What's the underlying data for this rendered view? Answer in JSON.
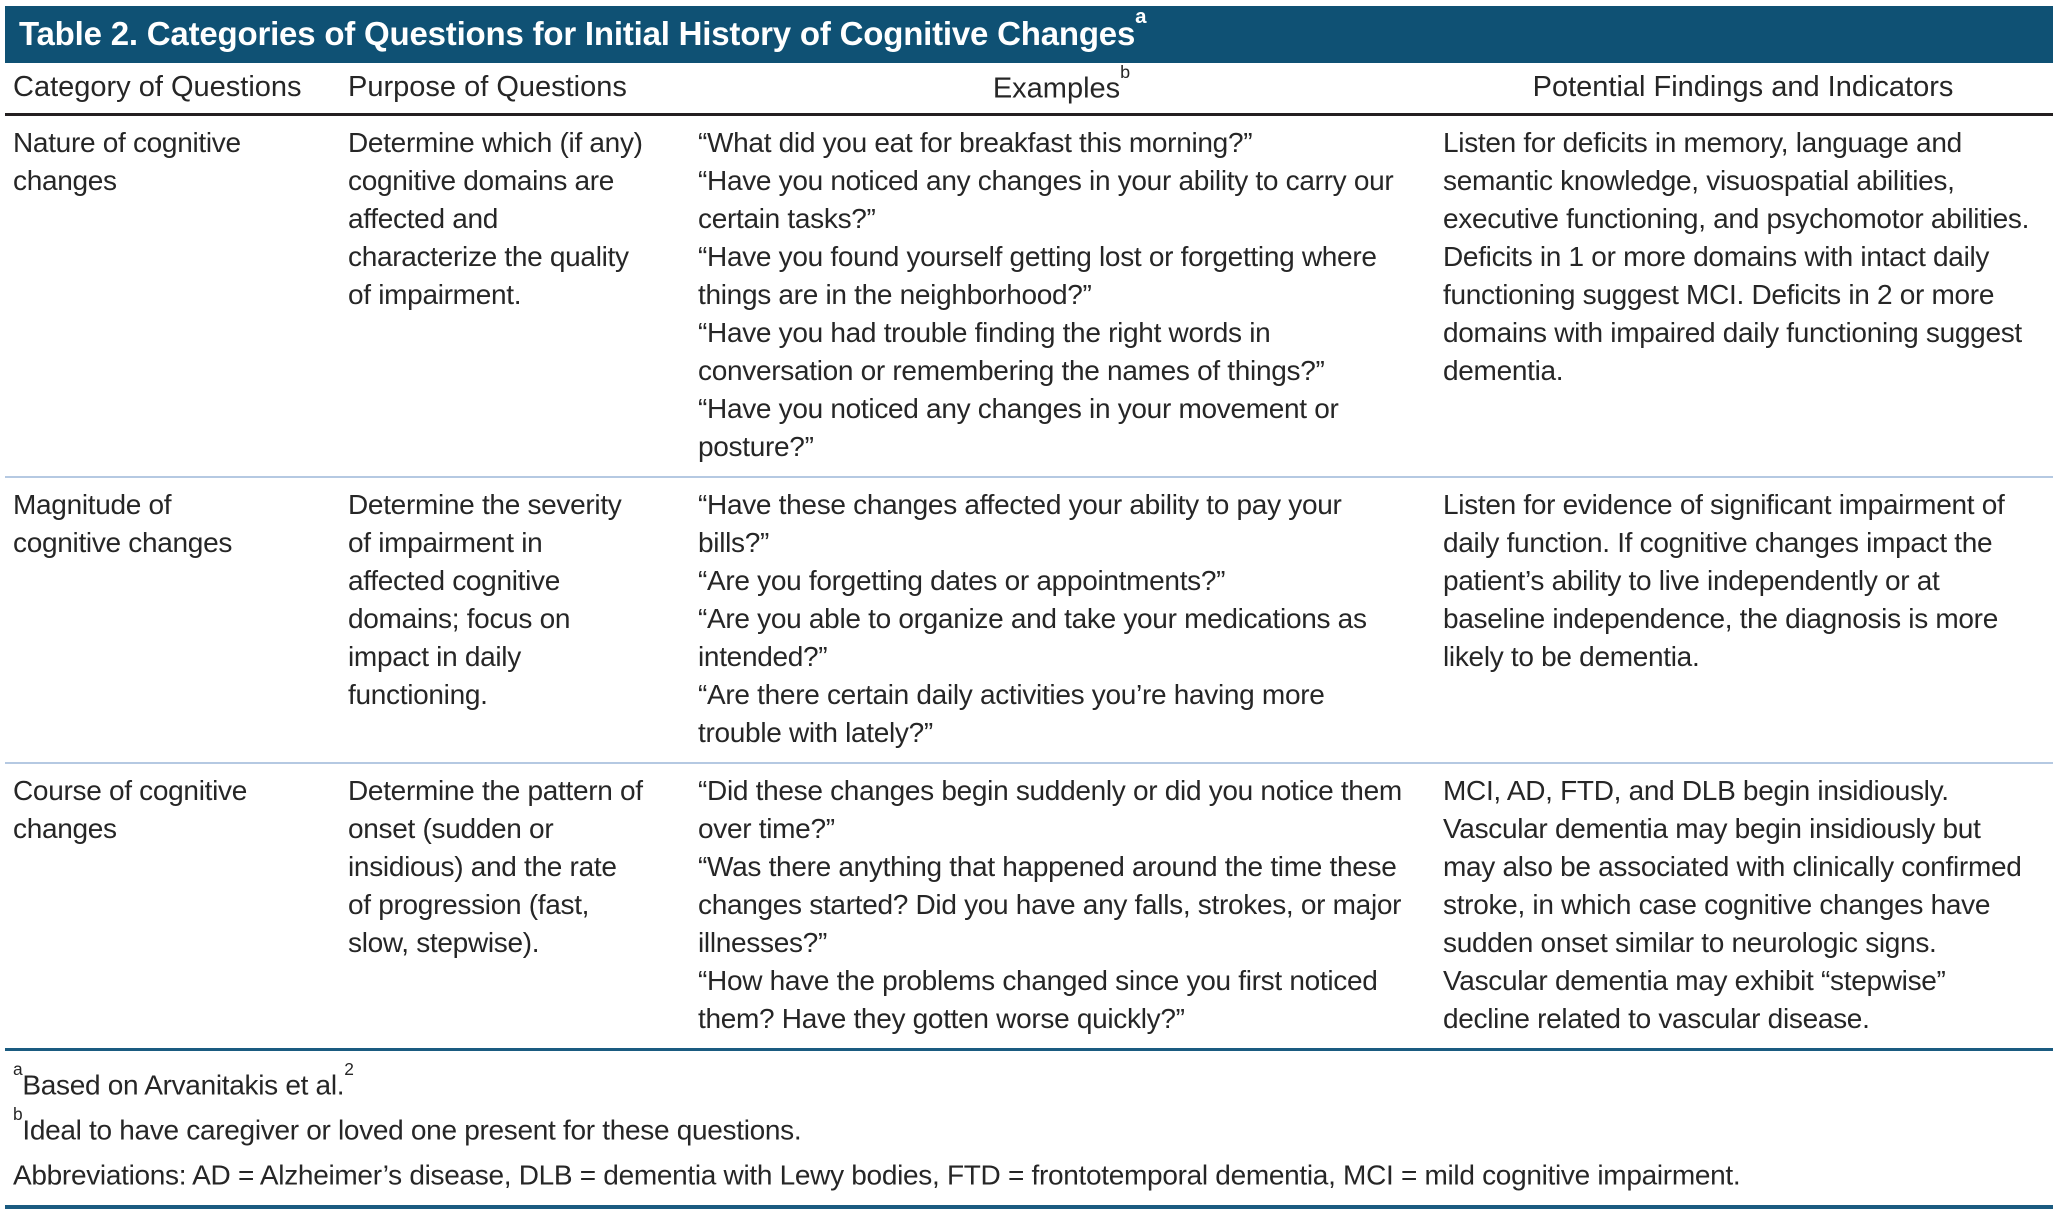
{
  "table": {
    "title": "Table 2. Categories of Questions for Initial History of Cognitive Changes",
    "title_superscript": "a",
    "columns": [
      "Category of Questions",
      "Purpose of Questions",
      "Examples",
      "Potential Findings and Indicators"
    ],
    "examples_superscript": "b",
    "rows": [
      {
        "category": "Nature of cognitive changes",
        "purpose": "Determine which (if any) cognitive domains are affected and characterize the quality of impairment.",
        "examples": [
          "“What did you eat for breakfast this morning?”",
          "“Have you noticed any changes in your ability to carry our certain tasks?”",
          "“Have you found yourself getting lost or forgetting where things are in the neighborhood?”",
          "“Have you had trouble finding the right words in conversation or remembering the names of things?”",
          "“Have you noticed any changes in your movement or posture?”"
        ],
        "findings": "Listen for deficits in memory, language and semantic knowledge, visuospatial abilities, executive functioning, and psychomotor abilities. Deficits in 1 or more domains with intact daily functioning suggest MCI. Deficits in 2 or more domains with impaired daily functioning suggest dementia."
      },
      {
        "category": "Magnitude of cognitive changes",
        "purpose": "Determine the severity of impairment in affected cognitive domains; focus on impact in daily functioning.",
        "examples": [
          "“Have these changes affected your ability to pay your bills?”",
          "“Are you forgetting dates or appointments?”",
          "“Are you able to organize and take your medications as intended?”",
          "“Are there certain daily activities you’re having more trouble with lately?”"
        ],
        "findings": "Listen for evidence of significant impairment of daily function. If cognitive changes impact the patient’s ability to live independently or at baseline independence, the diagnosis is more likely to be dementia."
      },
      {
        "category": "Course of cognitive changes",
        "purpose": "Determine the pattern of onset (sudden or insidious) and the rate of progression (fast, slow, stepwise).",
        "examples": [
          "“Did these changes begin suddenly or did you notice them over time?”",
          "“Was there anything that happened around the time these changes started? Did you have any falls, strokes, or major illnesses?”",
          "“How have the problems changed since you first noticed them? Have they gotten worse quickly?”"
        ],
        "findings": "MCI, AD, FTD, and DLB begin insidiously. Vascular dementia may begin insidiously but may also be associated with clinically confirmed stroke, in which case cognitive changes have sudden onset similar to neurologic signs. Vascular dementia may exhibit “stepwise” decline related to vascular disease."
      }
    ],
    "footnotes": [
      {
        "marker": "a",
        "text": "Based on Arvanitakis et al.",
        "trailing_superscript": "2"
      },
      {
        "marker": "b",
        "text": "Ideal to have caregiver or loved one present for these questions.",
        "trailing_superscript": ""
      },
      {
        "marker": "",
        "text": "Abbreviations: AD = Alzheimer’s disease, DLB = dementia with Lewy bodies, FTD = frontotemporal dementia, MCI = mild cognitive impairment.",
        "trailing_superscript": ""
      }
    ],
    "colors": {
      "header_bg": "#0f5174",
      "row_divider": "#b5c9e2",
      "dark_rule": "#1a5b80",
      "header_rule": "#231f20",
      "text": "#262626"
    }
  }
}
